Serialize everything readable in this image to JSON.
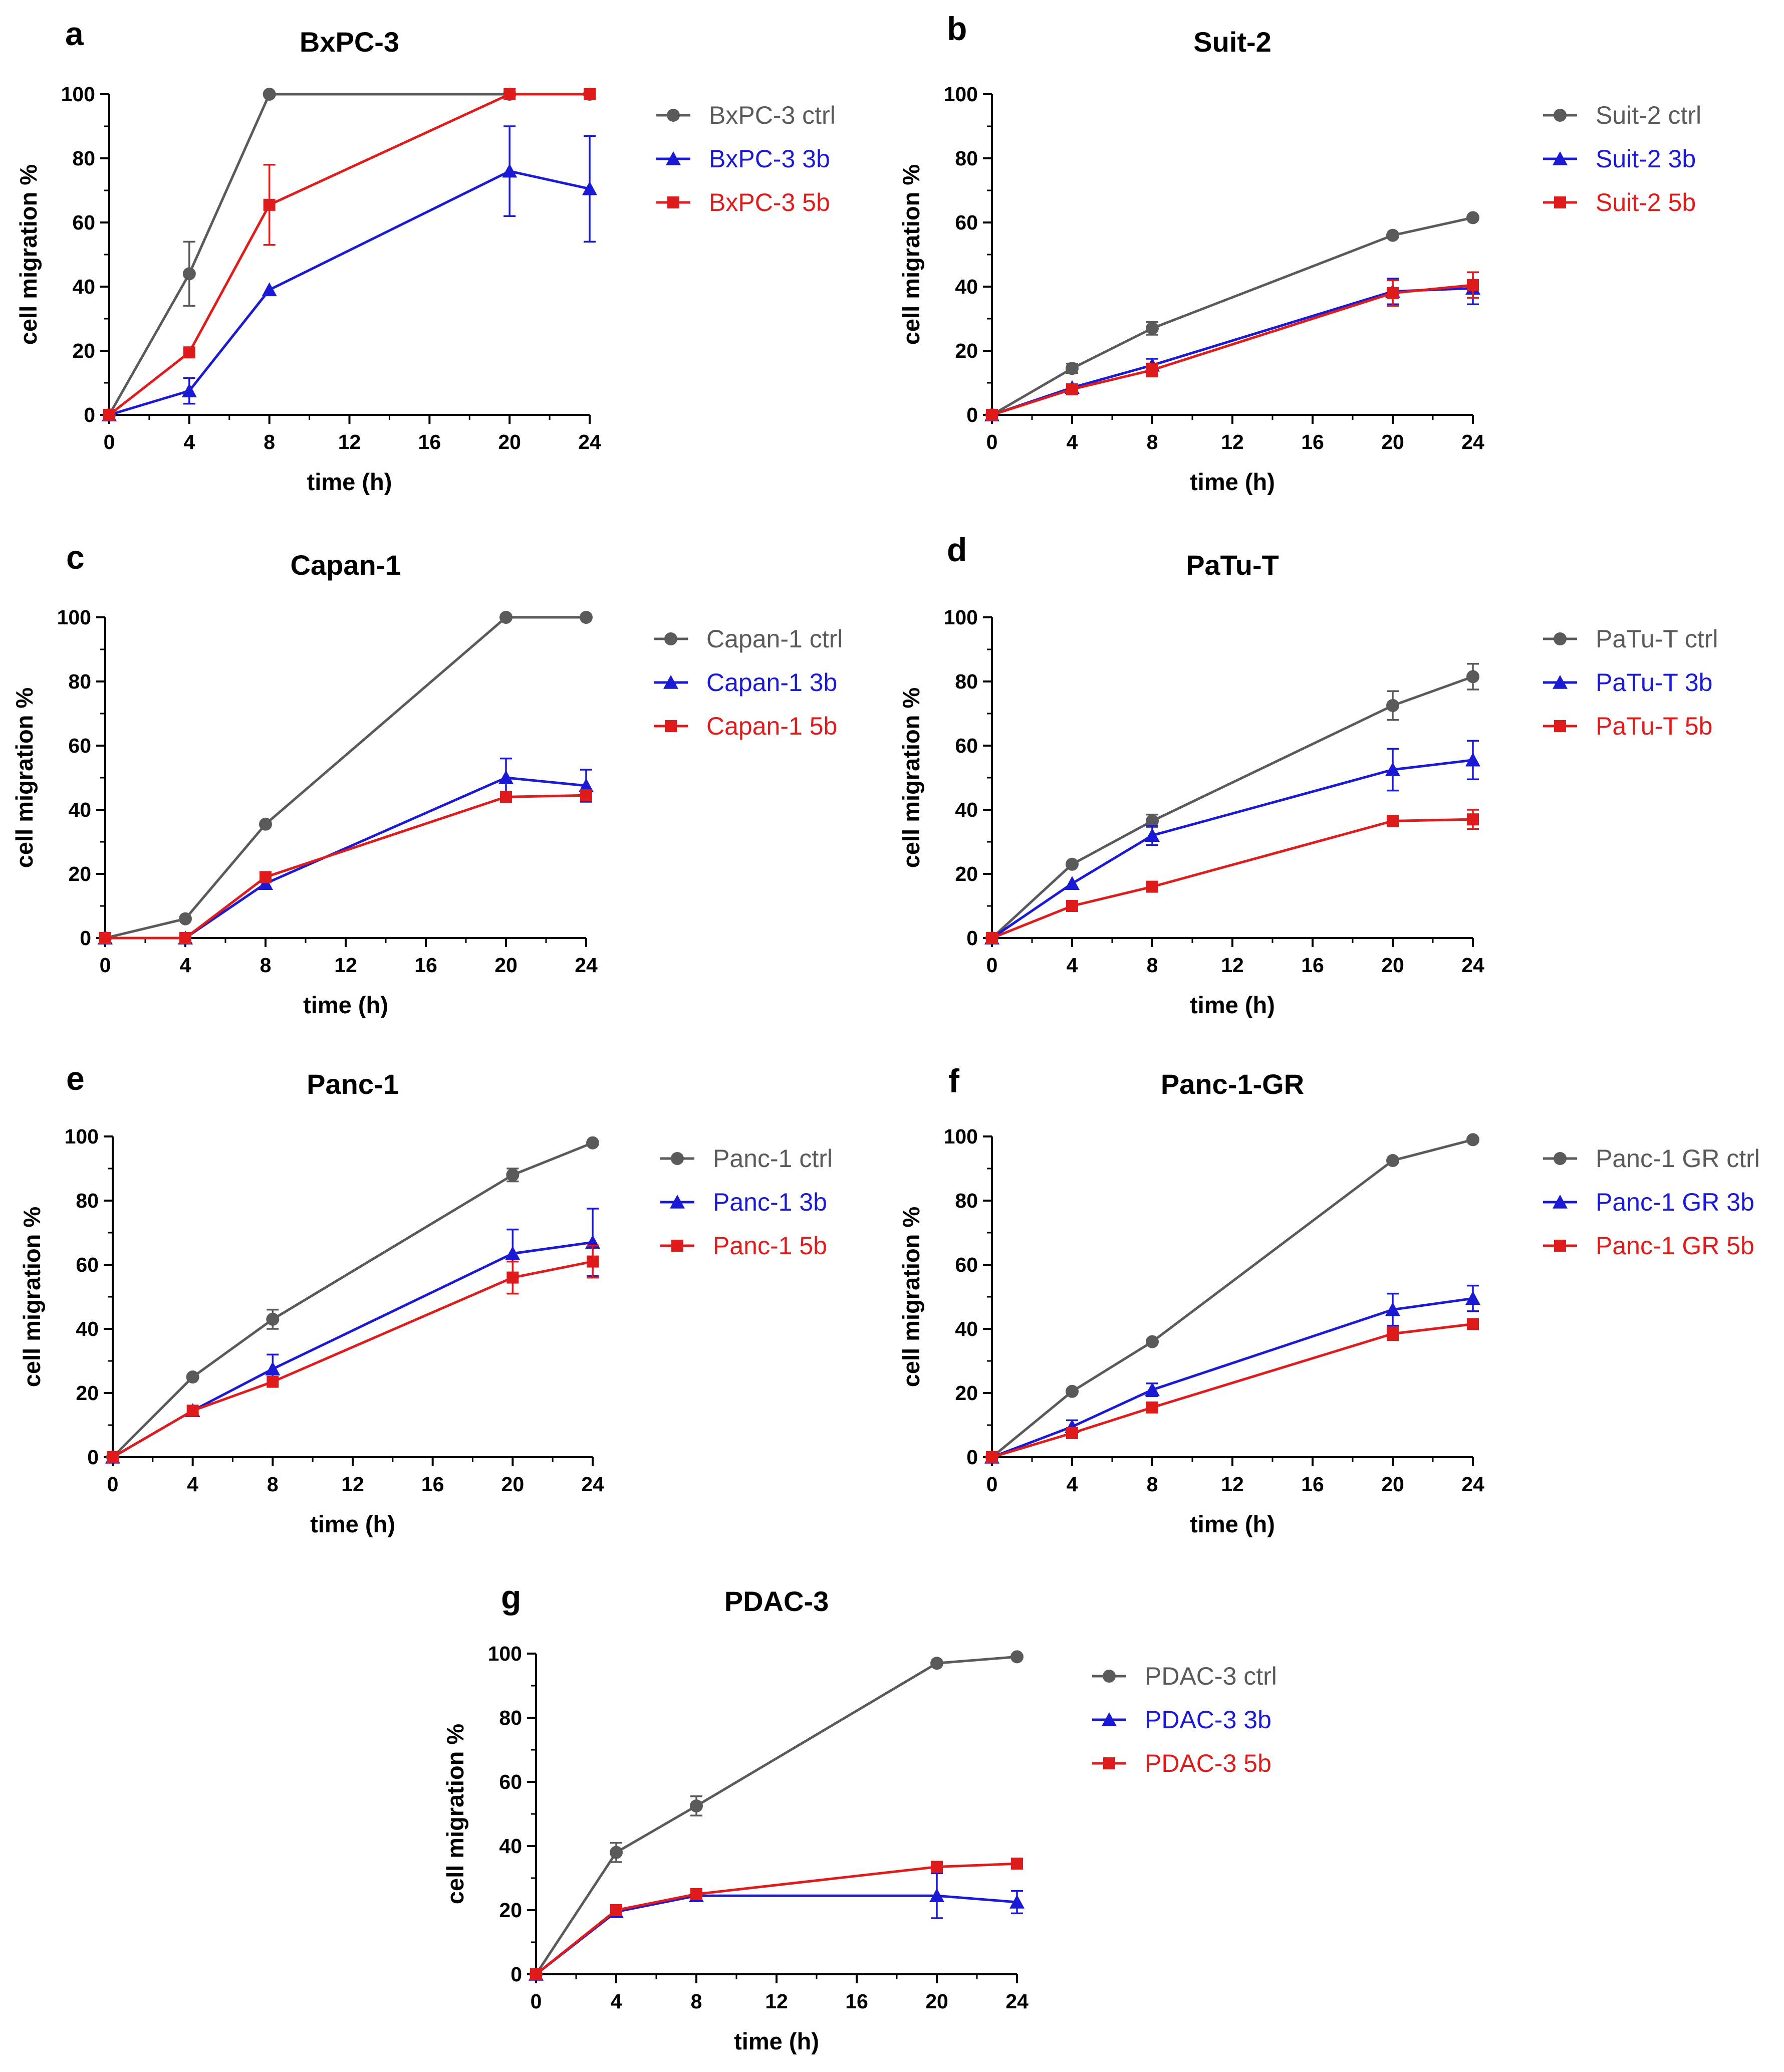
{
  "colors": {
    "ctrl": "#5a5a5a",
    "b3": "#1a1ad6",
    "b5": "#e01b1b"
  },
  "chart_data": [
    {
      "type": "line",
      "letter": "a",
      "title": "BxPC-3",
      "xlabel": "time (h)",
      "ylabel": "cell migration %",
      "xlim": [
        0,
        24
      ],
      "ylim": [
        0,
        100
      ],
      "xticks": [
        "0",
        "4",
        "8",
        "12",
        "16",
        "20",
        "24"
      ],
      "yticks": [
        "0",
        "20",
        "40",
        "60",
        "80",
        "100"
      ],
      "x": [
        0,
        4,
        8,
        20,
        24
      ],
      "series": [
        {
          "name": "BxPC-3 ctrl",
          "marker": "circle",
          "color": "#5a5a5a",
          "values": [
            0,
            44,
            100,
            100,
            100
          ],
          "errors": [
            0,
            10,
            0,
            0,
            0
          ]
        },
        {
          "name": "BxPC-3 3b",
          "marker": "triangle",
          "color": "#1a1ad6",
          "values": [
            0,
            7.5,
            39,
            76,
            70.5
          ],
          "errors": [
            0,
            4,
            0,
            14,
            16.5
          ]
        },
        {
          "name": "BxPC-3 5b",
          "marker": "square",
          "color": "#e01b1b",
          "values": [
            0,
            19.5,
            65.5,
            100,
            100
          ],
          "errors": [
            0,
            0,
            12.5,
            0,
            0
          ]
        }
      ]
    },
    {
      "type": "line",
      "letter": "b",
      "title": "Suit-2",
      "xlabel": "time (h)",
      "ylabel": "cell migration %",
      "xlim": [
        0,
        24
      ],
      "ylim": [
        0,
        100
      ],
      "xticks": [
        "0",
        "4",
        "8",
        "12",
        "16",
        "20",
        "24"
      ],
      "yticks": [
        "0",
        "20",
        "40",
        "60",
        "80",
        "100"
      ],
      "x": [
        0,
        4,
        8,
        20,
        24
      ],
      "series": [
        {
          "name": "Suit-2 ctrl",
          "marker": "circle",
          "color": "#5a5a5a",
          "values": [
            0,
            14.5,
            27,
            56,
            61.5
          ],
          "errors": [
            0,
            1.5,
            2,
            0,
            0
          ]
        },
        {
          "name": "Suit-2 3b",
          "marker": "triangle",
          "color": "#1a1ad6",
          "values": [
            0,
            8.5,
            15.5,
            38.5,
            39.5
          ],
          "errors": [
            0,
            1,
            2,
            4,
            5
          ]
        },
        {
          "name": "Suit-2 5b",
          "marker": "square",
          "color": "#e01b1b",
          "values": [
            0,
            8,
            14,
            38,
            40.5
          ],
          "errors": [
            0,
            1,
            2,
            4,
            4
          ]
        }
      ]
    },
    {
      "type": "line",
      "letter": "c",
      "title": "Capan-1",
      "xlabel": "time (h)",
      "ylabel": "cell migration %",
      "xlim": [
        0,
        24
      ],
      "ylim": [
        0,
        100
      ],
      "xticks": [
        "0",
        "4",
        "8",
        "12",
        "16",
        "20",
        "24"
      ],
      "yticks": [
        "0",
        "20",
        "40",
        "60",
        "80",
        "100"
      ],
      "x": [
        0,
        4,
        8,
        20,
        24
      ],
      "series": [
        {
          "name": "Capan-1 ctrl",
          "marker": "circle",
          "color": "#5a5a5a",
          "values": [
            0,
            6,
            35.5,
            100,
            100
          ],
          "errors": [
            0,
            0,
            0,
            0,
            0
          ]
        },
        {
          "name": "Capan-1 3b",
          "marker": "triangle",
          "color": "#1a1ad6",
          "values": [
            0,
            0,
            17,
            50,
            47.5
          ],
          "errors": [
            0,
            0,
            0,
            6,
            5
          ]
        },
        {
          "name": "Capan-1 5b",
          "marker": "square",
          "color": "#e01b1b",
          "values": [
            0,
            0,
            19,
            44,
            44.5
          ],
          "errors": [
            0,
            0,
            0,
            0,
            0
          ]
        }
      ]
    },
    {
      "type": "line",
      "letter": "d",
      "title": "PaTu-T",
      "xlabel": "time (h)",
      "ylabel": "cell migration %",
      "xlim": [
        0,
        24
      ],
      "ylim": [
        0,
        100
      ],
      "xticks": [
        "0",
        "4",
        "8",
        "12",
        "16",
        "20",
        "24"
      ],
      "yticks": [
        "0",
        "20",
        "40",
        "60",
        "80",
        "100"
      ],
      "x": [
        0,
        4,
        8,
        20,
        24
      ],
      "series": [
        {
          "name": "PaTu-T ctrl",
          "marker": "circle",
          "color": "#5a5a5a",
          "values": [
            0,
            23,
            36.5,
            72.5,
            81.5
          ],
          "errors": [
            0,
            0,
            2,
            4.5,
            4
          ]
        },
        {
          "name": "PaTu-T 3b",
          "marker": "triangle",
          "color": "#1a1ad6",
          "values": [
            0,
            17,
            32,
            52.5,
            55.5
          ],
          "errors": [
            0,
            0,
            3,
            6.5,
            6
          ]
        },
        {
          "name": "PaTu-T 5b",
          "marker": "square",
          "color": "#e01b1b",
          "values": [
            0,
            10,
            16,
            36.5,
            37
          ],
          "errors": [
            0,
            0,
            0,
            0,
            3
          ]
        }
      ]
    },
    {
      "type": "line",
      "letter": "e",
      "title": "Panc-1",
      "xlabel": "time (h)",
      "ylabel": "cell migration %",
      "xlim": [
        0,
        24
      ],
      "ylim": [
        0,
        100
      ],
      "xticks": [
        "0",
        "4",
        "8",
        "12",
        "16",
        "20",
        "24"
      ],
      "yticks": [
        "0",
        "20",
        "40",
        "60",
        "80",
        "100"
      ],
      "x": [
        0,
        4,
        8,
        20,
        24
      ],
      "series": [
        {
          "name": "Panc-1 ctrl",
          "marker": "circle",
          "color": "#5a5a5a",
          "values": [
            0,
            25,
            43,
            88,
            98
          ],
          "errors": [
            0,
            0,
            3,
            2,
            0
          ]
        },
        {
          "name": "Panc-1 3b",
          "marker": "triangle",
          "color": "#1a1ad6",
          "values": [
            0,
            14.5,
            27.5,
            63.5,
            67
          ],
          "errors": [
            0,
            0,
            4.5,
            7.5,
            10.5
          ]
        },
        {
          "name": "Panc-1 5b",
          "marker": "square",
          "color": "#e01b1b",
          "values": [
            0,
            14.5,
            23.5,
            56,
            61
          ],
          "errors": [
            0,
            0,
            0,
            5,
            5
          ]
        }
      ]
    },
    {
      "type": "line",
      "letter": "f",
      "title": "Panc-1-GR",
      "xlabel": "time (h)",
      "ylabel": "cell migration %",
      "xlim": [
        0,
        24
      ],
      "ylim": [
        0,
        100
      ],
      "xticks": [
        "0",
        "4",
        "8",
        "12",
        "16",
        "20",
        "24"
      ],
      "yticks": [
        "0",
        "20",
        "40",
        "60",
        "80",
        "100"
      ],
      "x": [
        0,
        4,
        8,
        20,
        24
      ],
      "series": [
        {
          "name": "Panc-1 GR ctrl",
          "marker": "circle",
          "color": "#5a5a5a",
          "values": [
            0,
            20.5,
            36,
            92.5,
            99
          ],
          "errors": [
            0,
            0,
            0,
            0,
            0
          ]
        },
        {
          "name": "Panc-1 GR 3b",
          "marker": "triangle",
          "color": "#1a1ad6",
          "values": [
            0,
            9.5,
            21,
            46,
            49.5
          ],
          "errors": [
            0,
            2,
            2,
            5,
            4
          ]
        },
        {
          "name": "Panc-1 GR 5b",
          "marker": "square",
          "color": "#e01b1b",
          "values": [
            0,
            7.5,
            15.5,
            38.5,
            41.5
          ],
          "errors": [
            0,
            1,
            0,
            2,
            0
          ]
        }
      ]
    },
    {
      "type": "line",
      "letter": "g",
      "title": "PDAC-3",
      "xlabel": "time (h)",
      "ylabel": "cell migration %",
      "xlim": [
        0,
        24
      ],
      "ylim": [
        0,
        100
      ],
      "xticks": [
        "0",
        "4",
        "8",
        "12",
        "16",
        "20",
        "24"
      ],
      "yticks": [
        "0",
        "20",
        "40",
        "60",
        "80",
        "100"
      ],
      "x": [
        0,
        4,
        8,
        20,
        24
      ],
      "series": [
        {
          "name": "PDAC-3 ctrl",
          "marker": "circle",
          "color": "#5a5a5a",
          "values": [
            0,
            38,
            52.5,
            97,
            99
          ],
          "errors": [
            0,
            3,
            3,
            0,
            0
          ]
        },
        {
          "name": "PDAC-3 3b",
          "marker": "triangle",
          "color": "#1a1ad6",
          "values": [
            0,
            19.5,
            24.5,
            24.5,
            22.5
          ],
          "errors": [
            0,
            0,
            0,
            7,
            3.5
          ]
        },
        {
          "name": "PDAC-3 5b",
          "marker": "square",
          "color": "#e01b1b",
          "values": [
            0,
            20,
            25,
            33.5,
            34.5
          ],
          "errors": [
            0,
            0,
            0,
            0,
            0
          ]
        }
      ]
    }
  ]
}
